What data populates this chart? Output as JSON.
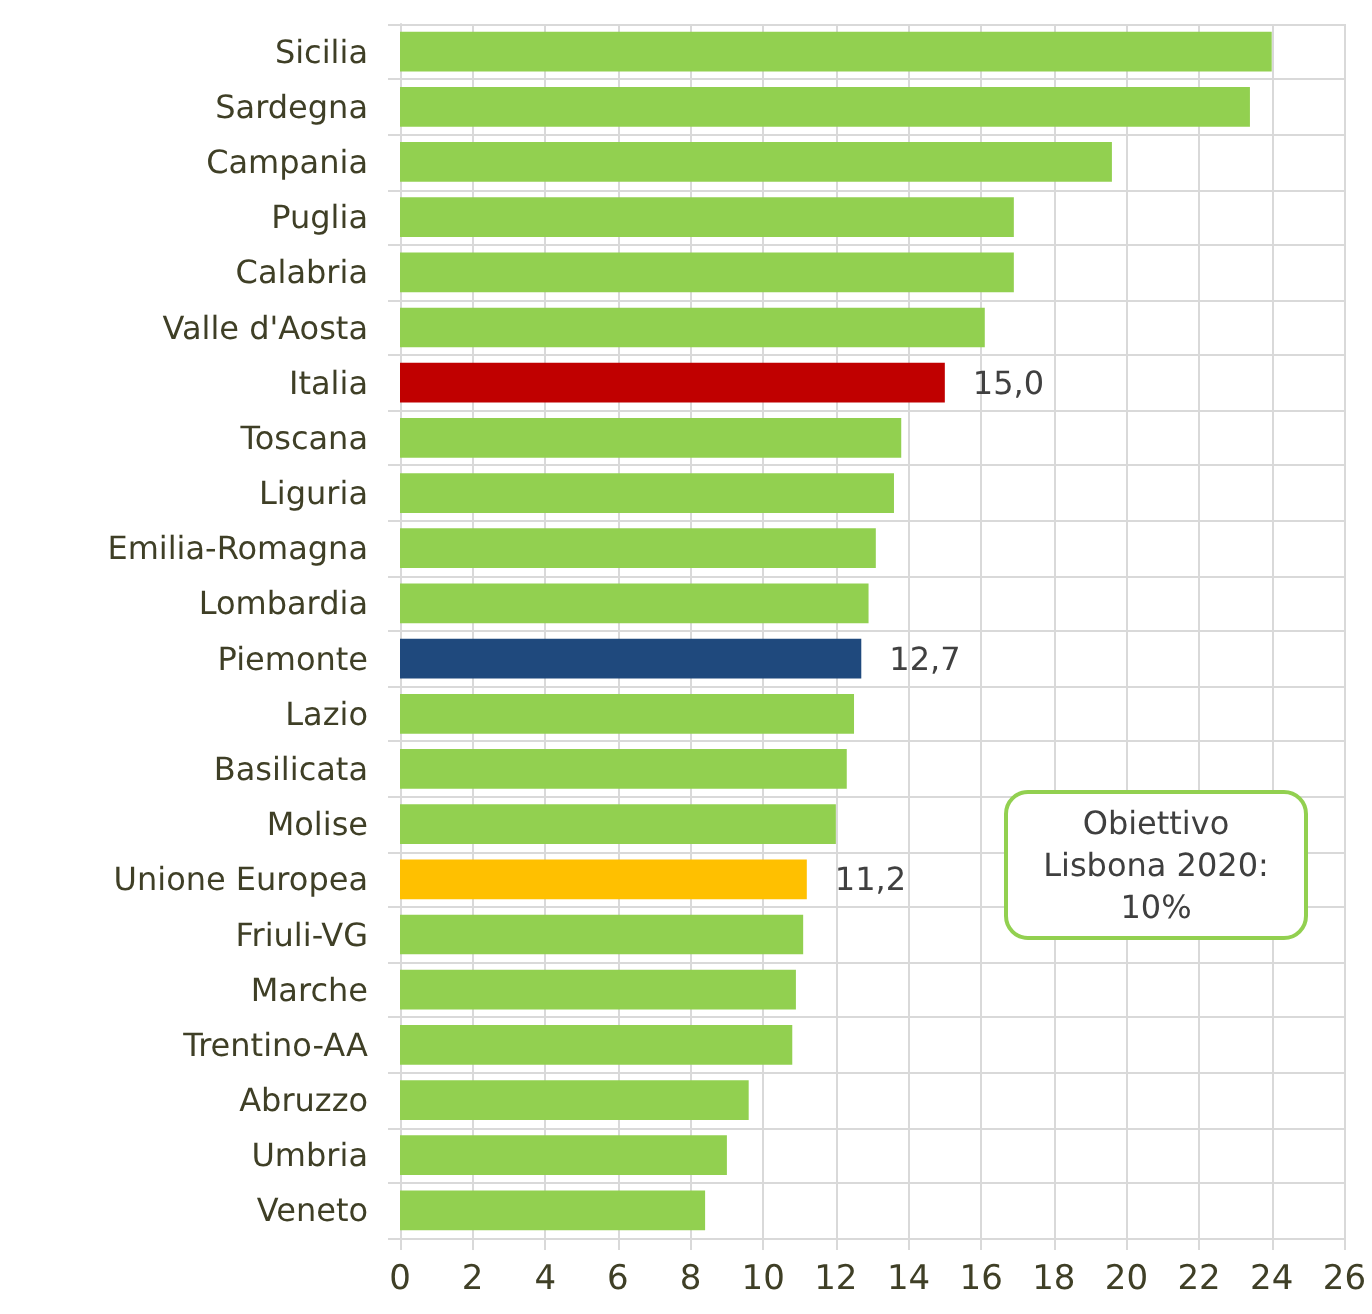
{
  "chart_data": {
    "type": "bar",
    "orientation": "horizontal",
    "categories": [
      "Sicilia",
      "Sardegna",
      "Campania",
      "Puglia",
      "Calabria",
      "Valle d'Aosta",
      "Italia",
      "Toscana",
      "Liguria",
      "Emilia-Romagna",
      "Lombardia",
      "Piemonte",
      "Lazio",
      "Basilicata",
      "Molise",
      "Unione Europea",
      "Friuli-VG",
      "Marche",
      "Trentino-AA",
      "Abruzzo",
      "Umbria",
      "Veneto"
    ],
    "values": [
      24.0,
      23.4,
      19.6,
      16.9,
      16.9,
      16.1,
      15.0,
      13.8,
      13.6,
      13.1,
      12.9,
      12.7,
      12.5,
      12.3,
      12.0,
      11.2,
      11.1,
      10.9,
      10.8,
      9.6,
      9.0,
      8.4
    ],
    "colors": [
      "#92d050",
      "#92d050",
      "#92d050",
      "#92d050",
      "#92d050",
      "#92d050",
      "#c00000",
      "#92d050",
      "#92d050",
      "#92d050",
      "#92d050",
      "#1f497d",
      "#92d050",
      "#92d050",
      "#92d050",
      "#ffc000",
      "#92d050",
      "#92d050",
      "#92d050",
      "#92d050",
      "#92d050",
      "#92d050"
    ],
    "value_labels": [
      null,
      null,
      null,
      null,
      null,
      null,
      "15,0",
      null,
      null,
      null,
      null,
      "12,7",
      null,
      null,
      null,
      "11,2",
      null,
      null,
      null,
      null,
      null,
      null
    ],
    "xlim": [
      0,
      26
    ],
    "xticks": [
      0,
      2,
      4,
      6,
      8,
      10,
      12,
      14,
      16,
      18,
      20,
      22,
      24,
      26
    ],
    "grid": true,
    "annotations": [
      "Obiettivo Lisbona 2020: 10%"
    ]
  }
}
